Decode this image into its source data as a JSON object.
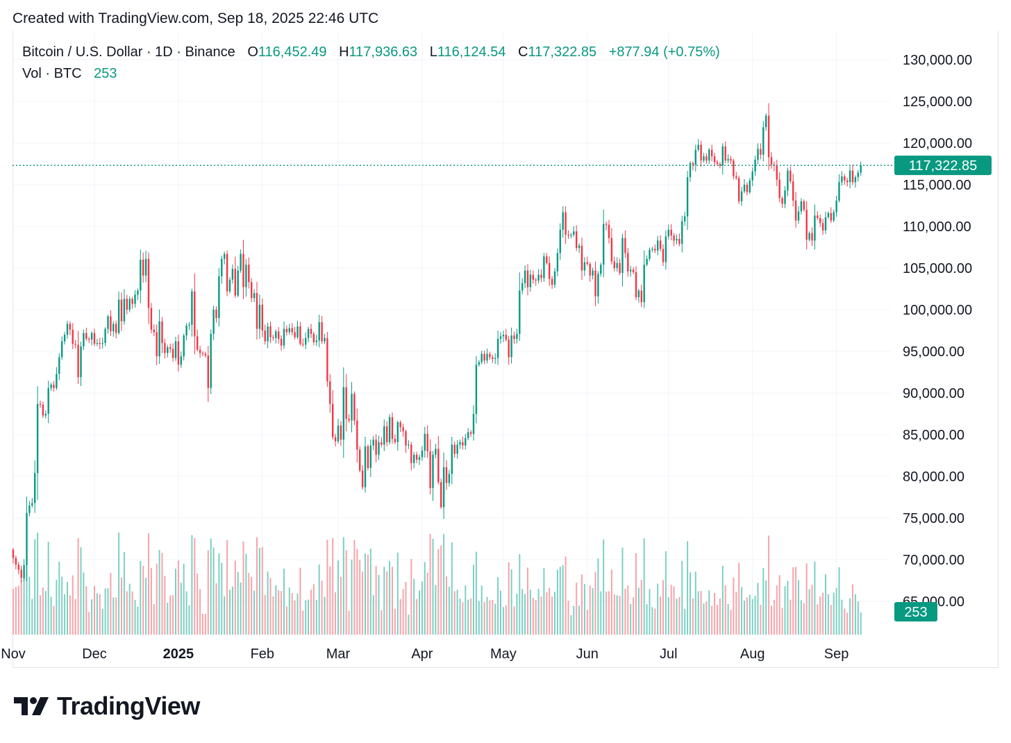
{
  "header": {
    "created_text": "Created with TradingView.com, Sep 18, 2025 22:46 UTC"
  },
  "legend": {
    "symbol": "Bitcoin / U.S. Dollar · 1D · Binance",
    "open_label": "O",
    "open_value": "116,452.49",
    "high_label": "H",
    "high_value": "117,936.63",
    "low_label": "L",
    "low_value": "116,124.54",
    "close_label": "C",
    "close_value": "117,322.85",
    "change": "+877.94 (+0.75%)",
    "vol_label": "Vol · BTC",
    "vol_value": "253"
  },
  "price_tag": "117,322.85",
  "volume_tag": "253",
  "footer": {
    "brand": "TradingView"
  },
  "colors": {
    "up": "#089981",
    "down": "#f23645",
    "up_vol": "#7ccfc2",
    "down_vol": "#f7a3a9",
    "grid": "#f0f3fa",
    "tag": "#089981"
  },
  "chart_data": {
    "type": "candlestick",
    "title": "Bitcoin / U.S. Dollar · 1D · Binance",
    "y_ticks": [
      "130,000.00",
      "125,000.00",
      "120,000.00",
      "115,000.00",
      "110,000.00",
      "105,000.00",
      "100,000.00",
      "95,000.00",
      "90,000.00",
      "85,000.00",
      "80,000.00",
      "75,000.00",
      "70,000.00",
      "65,000.00"
    ],
    "y_tick_values": [
      130000,
      125000,
      120000,
      115000,
      110000,
      105000,
      100000,
      95000,
      90000,
      85000,
      80000,
      75000,
      70000,
      65000
    ],
    "ylim": [
      61000,
      133500
    ],
    "x_labels": [
      "Nov",
      "Dec",
      "2025",
      "Feb",
      "Mar",
      "Apr",
      "May",
      "Jun",
      "Jul",
      "Aug",
      "Sep"
    ],
    "x_label_days": [
      0,
      30,
      61,
      92,
      120,
      151,
      181,
      212,
      242,
      273,
      304
    ],
    "start_date": "2024-11-01",
    "last_close": 117322.85,
    "last_volume": 253,
    "daily_closes": [
      70200,
      69400,
      68800,
      67800,
      69350,
      75600,
      76500,
      76800,
      80400,
      88700,
      88600,
      87300,
      87500,
      90600,
      91000,
      90600,
      92300,
      94300,
      96200,
      97000,
      98300,
      97600,
      95900,
      95800,
      91900,
      95600,
      97200,
      96500,
      96400,
      97200,
      95900,
      96000,
      95900,
      96000,
      97700,
      99200,
      97400,
      98300,
      97200,
      101200,
      98600,
      101300,
      100000,
      101300,
      100700,
      101800,
      102300,
      106000,
      104100,
      106100,
      100200,
      97600,
      97300,
      94400,
      98600,
      96000,
      94800,
      95500,
      95300,
      94200,
      96200,
      93400,
      94400,
      96900,
      98100,
      98200,
      102200,
      96800,
      95200,
      94800,
      94700,
      94500,
      90600,
      97100,
      100000,
      99000,
      104000,
      106100,
      106700,
      102200,
      103600,
      104900,
      101700,
      104700,
      106700,
      102700,
      105400,
      103300,
      101400,
      102000,
      97700,
      100600,
      97500,
      96200,
      98000,
      96700,
      96600,
      97400,
      96500,
      95700,
      97700,
      97300,
      97800,
      97300,
      96700,
      98000,
      95900,
      95800,
      96600,
      97700,
      97100,
      96100,
      96300,
      98500,
      96200,
      96600,
      91400,
      88700,
      84700,
      84200,
      86100,
      84400,
      90700,
      86900,
      86700,
      89900,
      86700,
      83200,
      80700,
      78700,
      83600,
      81000,
      83700,
      84400,
      82600,
      84100,
      83800,
      86000,
      84100,
      87100,
      84500,
      84100,
      86500,
      85900,
      85400,
      83700,
      83800,
      81600,
      82600,
      82000,
      82300,
      83100,
      85100,
      83000,
      78600,
      82600,
      83300,
      79300,
      76300,
      81100,
      79200,
      80300,
      83800,
      82700,
      83800,
      84100,
      83700,
      84600,
      85300,
      85100,
      87500,
      93400,
      93700,
      94700,
      93900,
      94700,
      94300,
      94100,
      94200,
      96500,
      96800,
      97000,
      96400,
      94300,
      96900,
      96500,
      97100,
      102300,
      103200,
      104700,
      102700,
      104200,
      103600,
      103500,
      104200,
      103800,
      106400,
      105600,
      103700,
      103000,
      104600,
      106800,
      109600,
      111700,
      109000,
      108900,
      109000,
      109400,
      107400,
      107700,
      104700,
      105700,
      105500,
      104100,
      104700,
      101600,
      104300,
      105400,
      110300,
      110200,
      108600,
      105800,
      105000,
      105600,
      104400,
      108600,
      106800,
      104600,
      104800,
      104500,
      101500,
      102300,
      100900,
      105400,
      106100,
      107200,
      107300,
      107100,
      108300,
      107300,
      105700,
      108800,
      109600,
      108900,
      108300,
      108500,
      107900,
      110600,
      111200,
      115900,
      117600,
      117400,
      119200,
      119800,
      117900,
      118400,
      117900,
      119200,
      118400,
      117700,
      117500,
      117300,
      119600,
      117900,
      118100,
      117900,
      116000,
      115800,
      113000,
      114200,
      115000,
      114100,
      115500,
      116600,
      118000,
      119300,
      118600,
      121900,
      123300,
      118300,
      117400,
      117300,
      115600,
      113400,
      112700,
      114300,
      116700,
      115400,
      113100,
      110700,
      111800,
      113000,
      112000,
      108400,
      109200,
      108300,
      111300,
      111000,
      110400,
      109500,
      111100,
      111600,
      110700,
      111700,
      113100,
      115300,
      116000,
      115500,
      115300,
      116700,
      115300,
      115900,
      116450,
      117322.85
    ]
  }
}
